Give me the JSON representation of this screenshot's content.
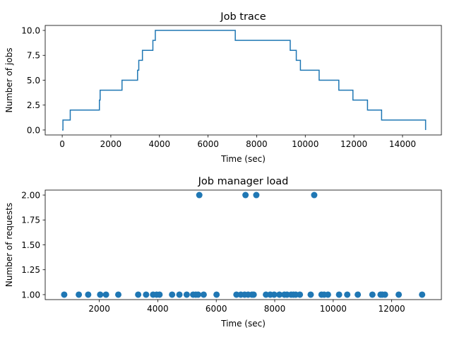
{
  "chart_data": [
    {
      "type": "line",
      "title": "Job trace",
      "xlabel": "Time (sec)",
      "ylabel": "Number of jobs",
      "xlim": [
        -700,
        15600
      ],
      "ylim": [
        -0.5,
        10.5
      ],
      "xticks": [
        0,
        2000,
        4000,
        6000,
        8000,
        10000,
        12000,
        14000
      ],
      "xtick_labels": [
        "0",
        "2000",
        "4000",
        "6000",
        "8000",
        "10000",
        "12000",
        "14000"
      ],
      "yticks": [
        0.0,
        2.5,
        5.0,
        7.5,
        10.0
      ],
      "ytick_labels": [
        "0.0",
        "2.5",
        "5.0",
        "7.5",
        "10.0"
      ],
      "step": "post",
      "color": "#1f77b4",
      "grid": false,
      "series": [
        {
          "x": [
            0,
            30,
            330,
            1530,
            1560,
            2460,
            3100,
            3150,
            3300,
            3730,
            3780,
            3830,
            7120,
            9380,
            9630,
            9800,
            10570,
            11380,
            11960,
            12560,
            13140,
            14950,
            14950
          ],
          "values": [
            0,
            1,
            2,
            3,
            4,
            5,
            6,
            7,
            8,
            9,
            9,
            10,
            9,
            8,
            7,
            6,
            5,
            4,
            3,
            2,
            1,
            0,
            0
          ]
        }
      ]
    },
    {
      "type": "scatter",
      "title": "Job manager load",
      "xlabel": "Time (sec)",
      "ylabel": "Number of requests",
      "xlim": [
        150,
        13700
      ],
      "ylim": [
        0.95,
        2.05
      ],
      "xticks": [
        2000,
        4000,
        6000,
        8000,
        10000,
        12000
      ],
      "xtick_labels": [
        "2000",
        "4000",
        "6000",
        "8000",
        "10000",
        "12000"
      ],
      "yticks": [
        1.0,
        1.25,
        1.5,
        1.75,
        2.0
      ],
      "ytick_labels": [
        "1.00",
        "1.25",
        "1.50",
        "1.75",
        "2.00"
      ],
      "color": "#1f77b4",
      "grid": false,
      "series": [
        {
          "x": [
            5420,
            7000,
            7370,
            9350,
            800,
            1300,
            1620,
            2030,
            2230,
            2650,
            3330,
            3600,
            3840,
            3960,
            4060,
            4490,
            4740,
            4990,
            5210,
            5300,
            5380,
            5570,
            6010,
            6690,
            6840,
            6970,
            7090,
            7220,
            7280,
            7700,
            7850,
            7980,
            8160,
            8330,
            8420,
            8560,
            8640,
            8720,
            8860,
            9230,
            9600,
            9690,
            9820,
            10200,
            10480,
            10840,
            11340,
            11620,
            11680,
            11770,
            12240,
            13040
          ],
          "y": [
            2,
            2,
            2,
            2,
            1,
            1,
            1,
            1,
            1,
            1,
            1,
            1,
            1,
            1,
            1,
            1,
            1,
            1,
            1,
            1,
            1,
            1,
            1,
            1,
            1,
            1,
            1,
            1,
            1,
            1,
            1,
            1,
            1,
            1,
            1,
            1,
            1,
            1,
            1,
            1,
            1,
            1,
            1,
            1,
            1,
            1,
            1,
            1,
            1,
            1,
            1,
            1
          ]
        }
      ]
    }
  ]
}
